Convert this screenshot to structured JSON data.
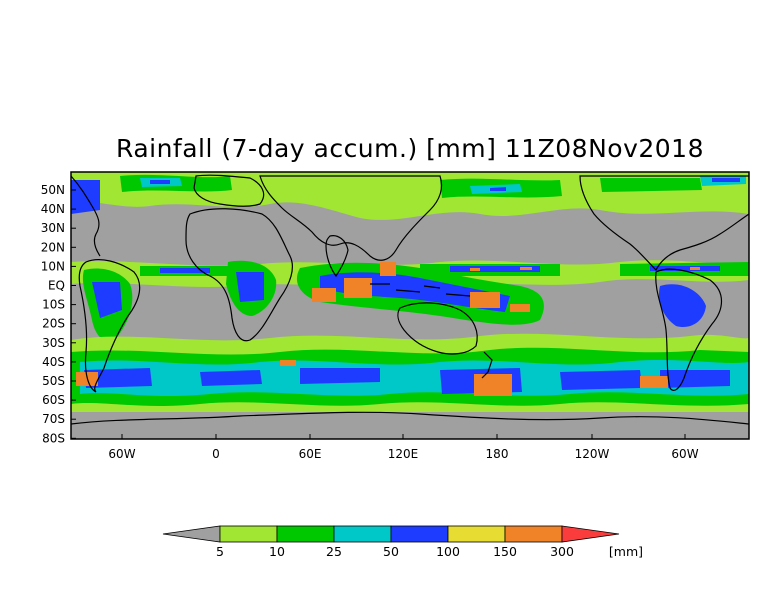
{
  "title": "Rainfall (7-day accum.) [mm] 11Z08Nov2018",
  "lat_labels": [
    "50N",
    "40N",
    "30N",
    "20N",
    "10N",
    "EQ",
    "10S",
    "20S",
    "30S",
    "40S",
    "50S",
    "60S",
    "70S",
    "80S"
  ],
  "lon_labels": [
    "60W",
    "0",
    "60E",
    "120E",
    "180",
    "120W",
    "60W"
  ],
  "colorbar": {
    "levels": [
      "5",
      "10",
      "25",
      "50",
      "100",
      "150",
      "300"
    ],
    "unit": "[mm]",
    "colors": [
      "#a0a0a0",
      "#a0e632",
      "#00c800",
      "#00c8c8",
      "#1e3cff",
      "#e6dc32",
      "#f08228",
      "#fa3c3c"
    ]
  },
  "map": {
    "background": "#a0a0a0",
    "coastline_color": "#000000"
  }
}
